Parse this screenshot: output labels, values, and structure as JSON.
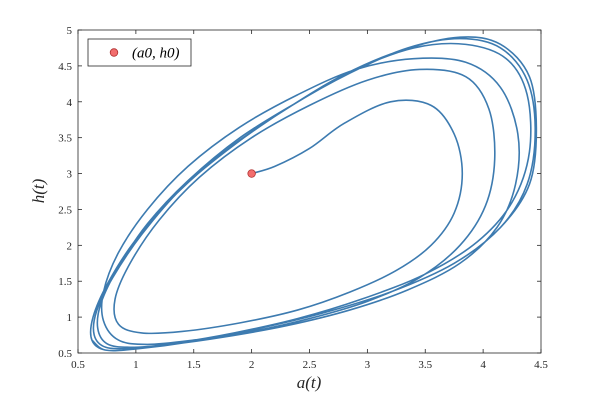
{
  "chart_data": {
    "type": "line",
    "title": "",
    "xlabel": "a(t)",
    "ylabel": "h(t)",
    "xlim": [
      0.5,
      4.5
    ],
    "ylim": [
      0.5,
      5
    ],
    "xticks": [
      0.5,
      1,
      1.5,
      2,
      2.5,
      3,
      3.5,
      4,
      4.5
    ],
    "xtick_labels": [
      "0.5",
      "1",
      "1.5",
      "2",
      "2.5",
      "3",
      "3.5",
      "4",
      "4.5"
    ],
    "yticks": [
      0.5,
      1,
      1.5,
      2,
      2.5,
      3,
      3.5,
      4,
      4.5,
      5
    ],
    "ytick_labels": [
      "0.5",
      "1",
      "1.5",
      "2",
      "2.5",
      "3",
      "3.5",
      "4",
      "4.5",
      "5"
    ],
    "grid": false,
    "legend_position": "top-left",
    "legend": [
      "(a0, h0)"
    ],
    "colors": {
      "trajectory": "#3d7bb0",
      "marker_fill": "#f26d6d",
      "marker_edge": "#b03030"
    },
    "initial_point": {
      "a": 2.0,
      "h": 3.0
    },
    "series": [
      {
        "name": "trajectory",
        "x": [
          2.0,
          2.2,
          2.5,
          2.8,
          3.2,
          3.55,
          3.75,
          3.82,
          3.75,
          3.55,
          3.25,
          2.85,
          2.4,
          1.9,
          1.4,
          1.05,
          0.85,
          0.82,
          0.95,
          1.2,
          1.55,
          2.0,
          2.5,
          3.0,
          3.45,
          3.85,
          4.05,
          4.1,
          4.02,
          3.8,
          3.45,
          3.0,
          2.5,
          2.0,
          1.5,
          1.1,
          0.85,
          0.72,
          0.72,
          0.85,
          1.1,
          1.45,
          1.9,
          2.4,
          2.9,
          3.4,
          3.85,
          4.15,
          4.3,
          4.28,
          4.12,
          3.8,
          3.35,
          2.85,
          2.3,
          1.75,
          1.3,
          0.95,
          0.75,
          0.67,
          0.7,
          0.85,
          1.1,
          1.45,
          1.9,
          2.4,
          2.9,
          3.4,
          3.85,
          4.2,
          4.38,
          4.4,
          4.25,
          3.95,
          3.5,
          2.95,
          2.4,
          1.85,
          1.35,
          0.98,
          0.74,
          0.64,
          0.66,
          0.8,
          1.05,
          1.4,
          1.85,
          2.35,
          2.85,
          3.35,
          3.8,
          4.15,
          4.38,
          4.45,
          4.38,
          4.15,
          3.75,
          3.2,
          2.6,
          2.0,
          1.45,
          1.02,
          0.74,
          0.62,
          0.63,
          0.76,
          1.0,
          1.35,
          1.8,
          2.3,
          2.8,
          3.3,
          3.8,
          4.15,
          4.4,
          4.46,
          4.4,
          4.15,
          3.75,
          3.2,
          2.6,
          2.0,
          1.45,
          1.02,
          0.74,
          0.62
        ],
        "y": [
          3.0,
          3.1,
          3.35,
          3.7,
          4.0,
          3.95,
          3.55,
          3.0,
          2.45,
          2.0,
          1.65,
          1.35,
          1.1,
          0.92,
          0.8,
          0.78,
          0.9,
          1.25,
          1.75,
          2.35,
          2.95,
          3.5,
          3.95,
          4.3,
          4.45,
          4.35,
          3.9,
          3.2,
          2.55,
          2.0,
          1.55,
          1.22,
          0.98,
          0.8,
          0.68,
          0.62,
          0.68,
          0.95,
          1.35,
          1.9,
          2.5,
          3.1,
          3.65,
          4.1,
          4.45,
          4.6,
          4.55,
          4.2,
          3.55,
          2.85,
          2.25,
          1.75,
          1.38,
          1.1,
          0.88,
          0.72,
          0.62,
          0.58,
          0.63,
          0.85,
          1.2,
          1.7,
          2.3,
          2.9,
          3.5,
          4.0,
          4.45,
          4.75,
          4.8,
          4.6,
          4.1,
          3.3,
          2.6,
          2.05,
          1.6,
          1.25,
          0.98,
          0.78,
          0.64,
          0.57,
          0.58,
          0.75,
          1.08,
          1.55,
          2.15,
          2.8,
          3.4,
          3.95,
          4.4,
          4.75,
          4.88,
          4.75,
          4.3,
          3.6,
          2.85,
          2.25,
          1.75,
          1.35,
          1.05,
          0.82,
          0.65,
          0.56,
          0.54,
          0.68,
          1.0,
          1.48,
          2.08,
          2.72,
          3.35,
          3.9,
          4.38,
          4.72,
          4.9,
          4.8,
          4.35,
          3.6,
          2.85,
          2.25,
          1.75,
          1.35,
          1.05,
          0.82,
          0.65,
          0.56,
          0.54,
          0.68
        ]
      }
    ]
  }
}
